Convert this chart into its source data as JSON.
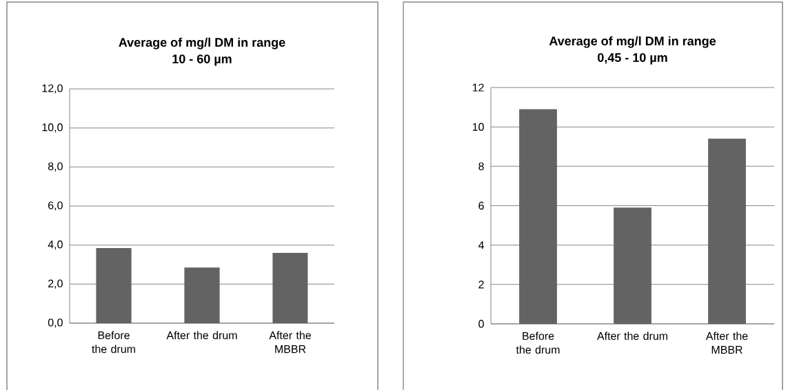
{
  "chart_data": [
    {
      "type": "bar",
      "title": "Average of mg/l DM in range 10 - 60 µm",
      "categories": [
        "Before the drum",
        "After the drum",
        "After the MBBR"
      ],
      "values": [
        3.85,
        2.85,
        3.6
      ],
      "color": "#636363",
      "ylim": [
        0,
        12
      ],
      "yticks": [
        {
          "value": 0,
          "label": "0,0"
        },
        {
          "value": 2,
          "label": "2,0"
        },
        {
          "value": 4,
          "label": "4,0"
        },
        {
          "value": 6,
          "label": "6,0"
        },
        {
          "value": 8,
          "label": "8,0"
        },
        {
          "value": 10,
          "label": "10,0"
        },
        {
          "value": 12,
          "label": "12,0"
        }
      ],
      "grid": "y"
    },
    {
      "type": "bar",
      "title": "Average of mg/l DM in range 0,45 - 10 µm",
      "categories": [
        "Before the drum",
        "After the drum",
        "After the MBBR"
      ],
      "values": [
        10.9,
        5.9,
        9.4
      ],
      "color": "#636363",
      "ylim": [
        0,
        12
      ],
      "yticks": [
        0,
        2,
        4,
        6,
        8,
        10,
        12
      ],
      "grid": "y"
    }
  ]
}
